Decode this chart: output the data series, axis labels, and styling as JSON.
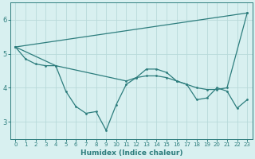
{
  "xlabel": "Humidex (Indice chaleur)",
  "x": [
    0,
    1,
    2,
    3,
    4,
    5,
    6,
    7,
    8,
    9,
    10,
    11,
    12,
    13,
    14,
    15,
    16,
    17,
    18,
    19,
    20,
    21,
    22,
    23
  ],
  "line_upper": {
    "x": [
      0,
      23
    ],
    "y": [
      5.2,
      6.2
    ]
  },
  "line_zigzag": {
    "x": [
      0,
      1,
      2,
      3,
      4,
      5,
      6,
      7,
      8,
      9,
      10,
      11,
      12,
      13,
      14,
      15,
      16,
      17,
      18,
      19,
      20,
      21,
      22,
      23
    ],
    "y": [
      5.2,
      4.85,
      4.7,
      4.65,
      4.65,
      3.9,
      3.45,
      3.25,
      3.3,
      2.75,
      3.5,
      4.1,
      4.3,
      4.55,
      4.55,
      4.45,
      4.2,
      4.1,
      3.65,
      3.7,
      4.0,
      3.9,
      3.4,
      3.65
    ]
  },
  "line_middle": {
    "x": [
      0,
      4,
      11,
      12,
      13,
      14,
      15,
      16,
      17,
      18,
      19,
      20,
      21,
      23
    ],
    "y": [
      5.2,
      4.65,
      4.2,
      4.3,
      4.35,
      4.35,
      4.3,
      4.2,
      4.1,
      4.0,
      3.95,
      3.95,
      4.0,
      6.2
    ]
  },
  "bg_color": "#d8f0f0",
  "grid_color": "#b8dada",
  "line_color": "#2d7d7d",
  "ylim": [
    2.5,
    6.5
  ],
  "yticks": [
    3,
    4,
    5,
    6
  ],
  "xlim": [
    -0.5,
    23.5
  ],
  "xticks": [
    0,
    1,
    2,
    3,
    4,
    5,
    6,
    7,
    8,
    9,
    10,
    11,
    12,
    13,
    14,
    15,
    16,
    17,
    18,
    19,
    20,
    21,
    22,
    23
  ]
}
